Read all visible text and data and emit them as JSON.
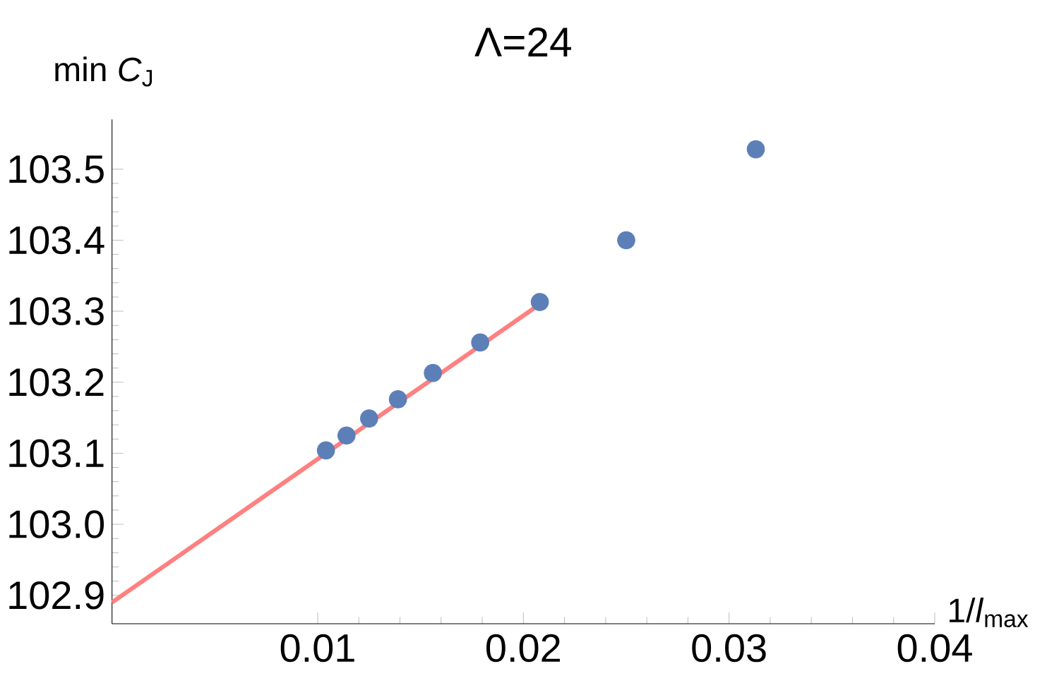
{
  "chart_data": {
    "type": "scatter",
    "title": "Λ=24",
    "xlabel": "1/*l*$_{max}$",
    "ylabel": "min *C*$_{J}$",
    "xlim": [
      0,
      0.04
    ],
    "ylim": [
      102.86,
      103.57
    ],
    "xticks": [
      0.01,
      0.02,
      0.03,
      0.04
    ],
    "yticks": [
      102.9,
      {
        "value": 103,
        "label": "103.0"
      },
      103.1,
      103.2,
      103.3,
      103.4,
      103.5
    ],
    "series": [
      {
        "marker": "circle",
        "color": "#5d7fb7",
        "x": [
          0.0104,
          0.0114,
          0.0125,
          0.0139,
          0.0156,
          0.0179,
          0.0208,
          0.025,
          0.0313
        ],
        "values": [
          103.104,
          103.125,
          103.149,
          103.176,
          103.213,
          103.256,
          103.313,
          103.4,
          103.528
        ]
      },
      {
        "type": "line",
        "color": "#ff8080",
        "x": [
          0,
          0.0208
        ],
        "values": [
          102.89,
          103.31
        ]
      }
    ]
  }
}
